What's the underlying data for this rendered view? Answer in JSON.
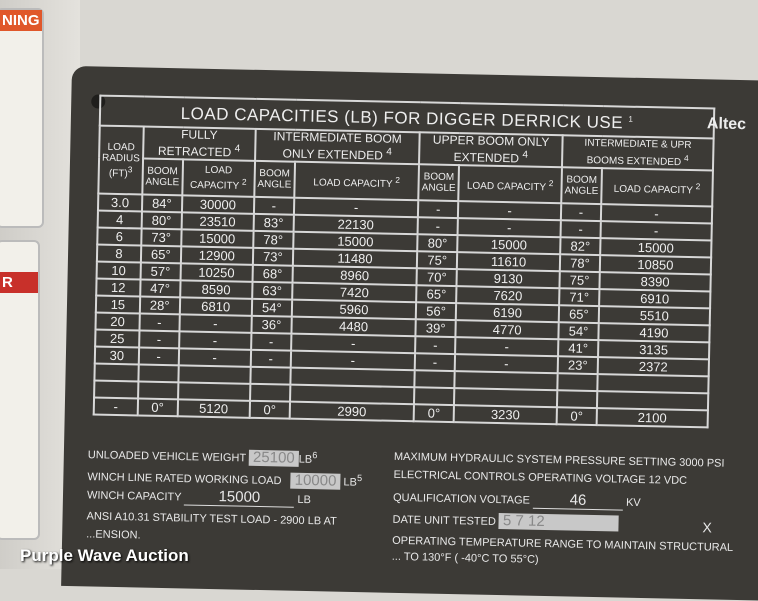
{
  "plate": {
    "title": "LOAD CAPACITIES (LB) FOR DIGGER DERRICK USE",
    "title_note": "1",
    "radius_header": "LOAD RADIUS (FT)",
    "radius_note": "3",
    "groups": [
      {
        "label": "FULLY RETRACTED",
        "note": "4"
      },
      {
        "label": "INTERMEDIATE BOOM ONLY EXTENDED",
        "note": "4"
      },
      {
        "label": "UPPER BOOM ONLY EXTENDED",
        "note": "4"
      },
      {
        "label": "INTERMEDIATE & UPR BOOMS EXTENDED",
        "note": "4"
      }
    ],
    "angle_header": "BOOM ANGLE",
    "capacity_header": "LOAD CAPACITY",
    "capacity_note": "2",
    "rows": [
      [
        "3.0",
        "84°",
        "30000",
        "-",
        "-",
        "-",
        "-",
        "-",
        "-"
      ],
      [
        "4",
        "80°",
        "23510",
        "83°",
        "22130",
        "-",
        "-",
        "-",
        "-"
      ],
      [
        "6",
        "73°",
        "15000",
        "78°",
        "15000",
        "80°",
        "15000",
        "82°",
        "15000"
      ],
      [
        "8",
        "65°",
        "12900",
        "73°",
        "11480",
        "75°",
        "11610",
        "78°",
        "10850"
      ],
      [
        "10",
        "57°",
        "10250",
        "68°",
        "8960",
        "70°",
        "9130",
        "75°",
        "8390"
      ],
      [
        "12",
        "47°",
        "8590",
        "63°",
        "7420",
        "65°",
        "7620",
        "71°",
        "6910"
      ],
      [
        "15",
        "28°",
        "6810",
        "54°",
        "5960",
        "56°",
        "6190",
        "65°",
        "5510"
      ],
      [
        "20",
        "-",
        "-",
        "36°",
        "4480",
        "39°",
        "4770",
        "54°",
        "4190"
      ],
      [
        "25",
        "-",
        "-",
        "-",
        "-",
        "-",
        "-",
        "41°",
        "3135"
      ],
      [
        "30",
        "-",
        "-",
        "-",
        "-",
        "-",
        "-",
        "23°",
        "2372"
      ],
      [
        "",
        "",
        "",
        "",
        "",
        "",
        "",
        "",
        ""
      ],
      [
        "",
        "",
        "",
        "",
        "",
        "",
        "",
        "",
        ""
      ],
      [
        "-",
        "0°",
        "5120",
        "0°",
        "2990",
        "0°",
        "3230",
        "0°",
        "2100"
      ]
    ],
    "unloaded_weight_label": "UNLOADED VEHICLE WEIGHT",
    "unloaded_weight": "25100",
    "unloaded_unit": "LB",
    "unloaded_note": "6",
    "winch_rated_label": "WINCH LINE RATED WORKING LOAD",
    "winch_rated": "10000",
    "winch_rated_unit": "LB",
    "winch_rated_note": "5",
    "winch_capacity_label": "WINCH CAPACITY",
    "winch_capacity": "15000",
    "winch_capacity_unit": "LB",
    "ansi_line1": "ANSI A10.31 STABILITY TEST LOAD - 2900 LB AT",
    "ansi_line2": "...ENSION.",
    "hydraulic": "MAXIMUM HYDRAULIC SYSTEM PRESSURE SETTING 3000 PSI",
    "electrical": "ELECTRICAL CONTROLS OPERATING VOLTAGE 12 VDC",
    "qual_label": "QUALIFICATION VOLTAGE",
    "qual_value": "46",
    "qual_unit": "KV",
    "date_label": "DATE UNIT TESTED",
    "date_value": "5   7   12",
    "temp_line1": "OPERATING TEMPERATURE RANGE TO MAINTAIN STRUCTURAL",
    "temp_line2": "... TO 130°F ( -40°C TO 55°C)",
    "brand": "Altec",
    "checkbox_mark": "X"
  },
  "watermark": "Purple Wave Auction",
  "warning_label": "NING",
  "danger_label": "R"
}
